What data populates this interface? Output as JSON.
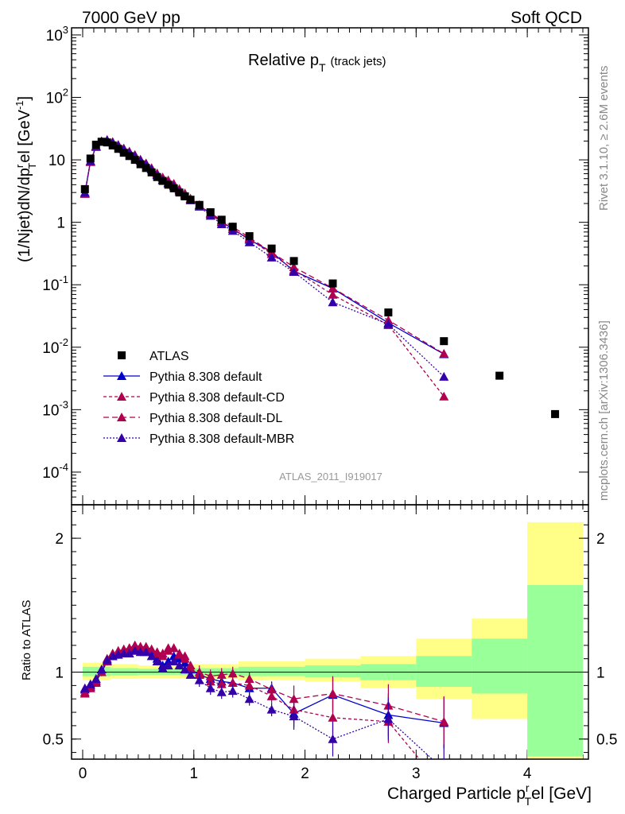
{
  "header": {
    "left_label": "7000 GeV pp",
    "right_label": "Soft QCD"
  },
  "side_labels": {
    "rivet": "Rivet 3.1.10, ≥ 2.6M events",
    "mcplots": "mcplots.cern.ch [arXiv:1306.3436]"
  },
  "chart_data": {
    "type": "scatter",
    "title_main": "Relative p",
    "title_sub": "T",
    "title_suffix": "(track jets)",
    "analysis_id": "ATLAS_2011_I919017",
    "ylabel_main": "(1/Njet)dN/dp",
    "ylabel_sup": "r",
    "ylabel_sub": "T",
    "ylabel_end": "el [GeV",
    "ylabel_unit_sup": "-1",
    "ylabel_close": "]",
    "ratio_ylabel": "Ratio to ATLAS",
    "xlabel_main": "Charged Particle p",
    "xlabel_sup": "r",
    "xlabel_sub": "T",
    "xlabel_end": "el [GeV]",
    "x_range": [
      -0.1,
      4.55
    ],
    "main_y_log": true,
    "main_ylim": [
      3e-05,
      1300
    ],
    "ratio_ylim": [
      0.35,
      2.25
    ],
    "main_y_ticks": [
      {
        "v": 0.0001,
        "base": "10",
        "exp": "-4"
      },
      {
        "v": 0.001,
        "base": "10",
        "exp": "-3"
      },
      {
        "v": 0.01,
        "base": "10",
        "exp": "-2"
      },
      {
        "v": 0.1,
        "base": "10",
        "exp": "-1"
      },
      {
        "v": 1,
        "base": "1",
        "exp": ""
      },
      {
        "v": 10,
        "base": "10",
        "exp": ""
      },
      {
        "v": 100,
        "base": "10",
        "exp": "2"
      },
      {
        "v": 1000,
        "base": "10",
        "exp": "3"
      }
    ],
    "ratio_y_ticks": [
      {
        "v": 0.5,
        "label": "0.5"
      },
      {
        "v": 1,
        "label": "1"
      },
      {
        "v": 2,
        "label": "2"
      }
    ],
    "x_ticks": [
      {
        "v": 0,
        "label": "0"
      },
      {
        "v": 1,
        "label": "1"
      },
      {
        "v": 2,
        "label": "2"
      },
      {
        "v": 3,
        "label": "3"
      },
      {
        "v": 4,
        "label": "4"
      }
    ],
    "data": {
      "name": "ATLAS",
      "x": [
        0.02,
        0.07,
        0.12,
        0.17,
        0.22,
        0.27,
        0.32,
        0.37,
        0.42,
        0.47,
        0.52,
        0.57,
        0.62,
        0.67,
        0.72,
        0.77,
        0.82,
        0.87,
        0.92,
        0.97,
        1.05,
        1.15,
        1.25,
        1.35,
        1.5,
        1.7,
        1.9,
        2.25,
        2.75,
        3.25,
        3.75,
        4.25
      ],
      "y": [
        3.4,
        10.5,
        17.5,
        19.5,
        19.0,
        17.0,
        15.0,
        13.0,
        11.5,
        10.0,
        8.5,
        7.4,
        6.3,
        5.3,
        4.6,
        4.0,
        3.5,
        3.0,
        2.6,
        2.3,
        1.9,
        1.45,
        1.1,
        0.85,
        0.6,
        0.38,
        0.24,
        0.105,
        0.036,
        0.0125,
        0.0035,
        0.00085
      ]
    },
    "bands": [
      {
        "x0": 0.0,
        "x1": 0.25,
        "yellow": [
          0.94,
          1.07
        ],
        "green": [
          0.97,
          1.04
        ]
      },
      {
        "x0": 0.25,
        "x1": 0.5,
        "yellow": [
          0.95,
          1.06
        ],
        "green": [
          0.975,
          1.03
        ]
      },
      {
        "x0": 0.5,
        "x1": 1.0,
        "yellow": [
          0.955,
          1.05
        ],
        "green": [
          0.98,
          1.025
        ]
      },
      {
        "x0": 1.0,
        "x1": 1.4,
        "yellow": [
          0.95,
          1.06
        ],
        "green": [
          0.975,
          1.03
        ]
      },
      {
        "x0": 1.4,
        "x1": 2.0,
        "yellow": [
          0.94,
          1.08
        ],
        "green": [
          0.97,
          1.04
        ]
      },
      {
        "x0": 2.0,
        "x1": 2.5,
        "yellow": [
          0.93,
          1.1
        ],
        "green": [
          0.96,
          1.05
        ]
      },
      {
        "x0": 2.5,
        "x1": 3.0,
        "yellow": [
          0.88,
          1.12
        ],
        "green": [
          0.94,
          1.06
        ]
      },
      {
        "x0": 3.0,
        "x1": 3.5,
        "yellow": [
          0.8,
          1.25
        ],
        "green": [
          0.89,
          1.12
        ]
      },
      {
        "x0": 3.5,
        "x1": 4.0,
        "yellow": [
          0.65,
          1.4
        ],
        "green": [
          0.84,
          1.25
        ]
      },
      {
        "x0": 4.0,
        "x1": 4.5,
        "yellow": [
          0.35,
          2.12
        ],
        "green": [
          0.37,
          1.65
        ]
      }
    ],
    "series": [
      {
        "name": "Pythia 8.308 default",
        "color": "#0000cc",
        "dash": "",
        "x": [
          0.02,
          0.07,
          0.12,
          0.17,
          0.22,
          0.27,
          0.32,
          0.37,
          0.42,
          0.47,
          0.52,
          0.57,
          0.62,
          0.67,
          0.72,
          0.77,
          0.82,
          0.87,
          0.92,
          0.97,
          1.05,
          1.15,
          1.25,
          1.35,
          1.5,
          1.7,
          1.9,
          2.25,
          2.75,
          3.25
        ],
        "ratio": [
          0.87,
          0.9,
          0.93,
          1.0,
          1.08,
          1.12,
          1.14,
          1.15,
          1.16,
          1.18,
          1.17,
          1.18,
          1.15,
          1.1,
          1.05,
          1.08,
          1.12,
          1.1,
          1.07,
          1.02,
          0.98,
          0.95,
          0.93,
          0.92,
          0.88,
          0.88,
          0.69,
          0.83,
          0.68,
          0.62
        ]
      },
      {
        "name": "Pythia 8.308 default-CD",
        "color": "#b0004f",
        "dash": "4,3",
        "x": [
          0.02,
          0.07,
          0.12,
          0.17,
          0.22,
          0.27,
          0.32,
          0.37,
          0.42,
          0.47,
          0.52,
          0.57,
          0.62,
          0.67,
          0.72,
          0.77,
          0.82,
          0.87,
          0.92,
          0.97,
          1.05,
          1.15,
          1.25,
          1.35,
          1.5,
          1.7,
          1.9,
          2.25,
          2.75,
          3.25
        ],
        "ratio": [
          0.85,
          0.88,
          0.92,
          1.0,
          1.08,
          1.13,
          1.15,
          1.17,
          1.18,
          1.2,
          1.19,
          1.18,
          1.17,
          1.14,
          1.12,
          1.16,
          1.18,
          1.13,
          1.1,
          1.03,
          0.98,
          0.93,
          0.91,
          0.92,
          0.9,
          0.82,
          0.72,
          0.66,
          0.63,
          0.13
        ]
      },
      {
        "name": "Pythia 8.308 default-DL",
        "color": "#b0004f",
        "dash": "7,4",
        "x": [
          0.02,
          0.07,
          0.12,
          0.17,
          0.22,
          0.27,
          0.32,
          0.37,
          0.42,
          0.47,
          0.52,
          0.57,
          0.62,
          0.67,
          0.72,
          0.77,
          0.82,
          0.87,
          0.92,
          0.97,
          1.05,
          1.15,
          1.25,
          1.35,
          1.5,
          1.7,
          1.9,
          2.25,
          2.75,
          3.25
        ],
        "ratio": [
          0.84,
          0.89,
          0.94,
          1.02,
          1.1,
          1.14,
          1.16,
          1.17,
          1.18,
          1.2,
          1.19,
          1.19,
          1.17,
          1.15,
          1.14,
          1.18,
          1.18,
          1.14,
          1.12,
          1.05,
          1.0,
          0.97,
          0.98,
          0.99,
          0.95,
          0.87,
          0.8,
          0.84,
          0.75,
          0.63
        ]
      },
      {
        "name": "Pythia 8.308 default-MBR",
        "color": "#3300aa",
        "dash": "2,2",
        "x": [
          0.02,
          0.07,
          0.12,
          0.17,
          0.22,
          0.27,
          0.32,
          0.37,
          0.42,
          0.47,
          0.52,
          0.57,
          0.62,
          0.67,
          0.72,
          0.77,
          0.82,
          0.87,
          0.92,
          0.97,
          1.05,
          1.15,
          1.25,
          1.35,
          1.5,
          1.7,
          1.9,
          2.25,
          2.75,
          3.25
        ],
        "ratio": [
          0.88,
          0.91,
          0.95,
          1.02,
          1.09,
          1.12,
          1.13,
          1.14,
          1.14,
          1.16,
          1.15,
          1.15,
          1.12,
          1.08,
          1.03,
          1.05,
          1.08,
          1.05,
          1.02,
          0.98,
          0.94,
          0.88,
          0.85,
          0.86,
          0.8,
          0.72,
          0.67,
          0.5,
          0.65,
          0.27
        ]
      }
    ],
    "legend_placement": "middle-left"
  }
}
